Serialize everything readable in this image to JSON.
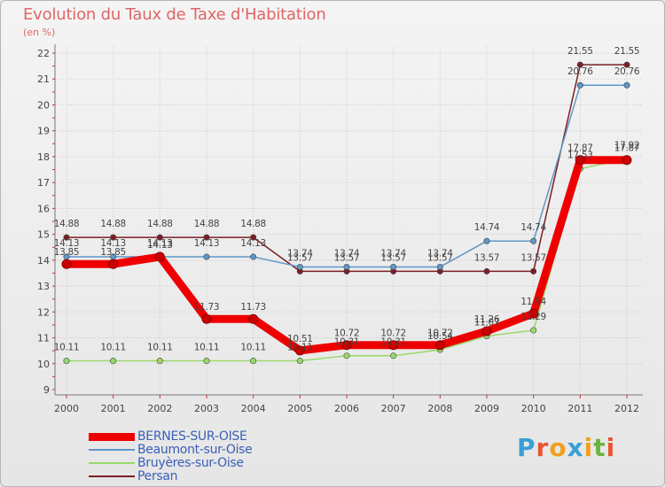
{
  "title": "Evolution du Taux de Taxe d'Habitation",
  "unit": "(en %)",
  "logo": {
    "letters": [
      "P",
      "r",
      "o",
      "x",
      "i",
      "t",
      "i"
    ],
    "colors": [
      "#3aa0d8",
      "#e8552e",
      "#f0a020",
      "#3aa0d8",
      "#f0a020",
      "#6ab540",
      "#e8552e"
    ]
  },
  "chart_data": {
    "type": "line",
    "x": [
      "2000",
      "2001",
      "2002",
      "2003",
      "2004",
      "2005",
      "2006",
      "2007",
      "2008",
      "2009",
      "2010",
      "2011",
      "2012"
    ],
    "ylim": [
      9,
      22
    ],
    "yticks": [
      "9",
      "10",
      "11",
      "12",
      "13",
      "14",
      "15",
      "16",
      "17",
      "18",
      "19",
      "20",
      "21",
      "22"
    ],
    "grid": true,
    "legend": "bottom-left",
    "series": [
      {
        "name": "BERNES-SUR-OISE",
        "color": "#ee0000",
        "values": [
          13.85,
          13.85,
          14.13,
          11.73,
          11.73,
          10.51,
          10.72,
          10.72,
          10.72,
          11.26,
          11.94,
          17.87,
          17.87
        ],
        "labels": [
          "13.85",
          "13.85",
          "14.13",
          "11.73",
          "11.73",
          "10.51",
          "10.72",
          "10.72",
          "10.72",
          "11.26",
          "11.94",
          "17.87",
          "17.87"
        ]
      },
      {
        "name": "Beaumont-sur-Oise",
        "color": "#5f97c8",
        "values": [
          14.13,
          14.13,
          14.13,
          14.13,
          14.13,
          13.74,
          13.74,
          13.74,
          13.74,
          14.74,
          14.74,
          20.76,
          20.76
        ],
        "labels": [
          "14.13",
          "14.13",
          "14.13",
          "14.13",
          "14.13",
          "13.74",
          "13.74",
          "13.74",
          "13.74",
          "14.74",
          "14.74",
          "20.76",
          "20.76"
        ]
      },
      {
        "name": "Bruyères-sur-Oise",
        "color": "#99d96a",
        "values": [
          10.11,
          10.11,
          10.11,
          10.11,
          10.11,
          10.11,
          10.31,
          10.31,
          10.54,
          11.07,
          11.29,
          17.53,
          17.92
        ],
        "labels": [
          "10.11",
          "10.11",
          "10.11",
          "10.11",
          "10.11",
          "10.11",
          "10.31",
          "10.31",
          "10.54",
          "11.07",
          "11.29",
          "17.53",
          "17.92"
        ]
      },
      {
        "name": "Persan",
        "color": "#7a1f25",
        "values": [
          14.88,
          14.88,
          14.88,
          14.88,
          14.88,
          13.57,
          13.57,
          13.57,
          13.57,
          13.57,
          13.57,
          21.55,
          21.55
        ],
        "labels": [
          "14.88",
          "14.88",
          "14.88",
          "14.88",
          "14.88",
          "13.57",
          "13.57",
          "13.57",
          "13.57",
          "13.57",
          "13.57",
          "21.55",
          "21.55"
        ]
      }
    ]
  }
}
